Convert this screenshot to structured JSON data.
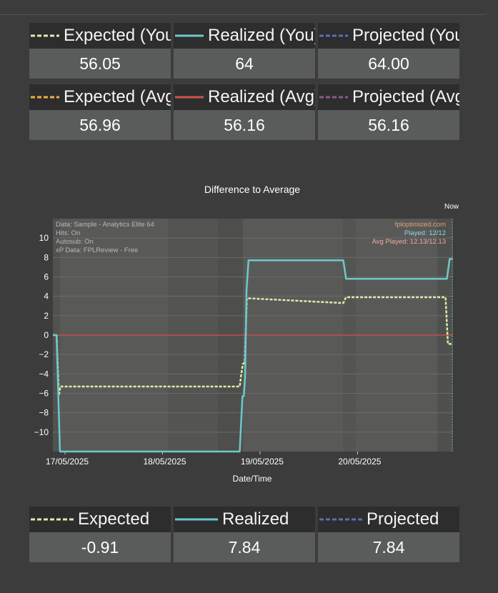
{
  "summary_top": [
    {
      "label": "Expected (You)",
      "value": "56.05",
      "color": "#d8f0a8",
      "dash": true
    },
    {
      "label": "Realized (You)",
      "value": "64",
      "color": "#6cc9cc",
      "dash": false
    },
    {
      "label": "Projected (You)",
      "value": "64.00",
      "color": "#5a6fb0",
      "dash": true
    },
    {
      "label": "Expected (Avg)",
      "value": "56.96",
      "color": "#f0b040",
      "dash": true
    },
    {
      "label": "Realized (Avg)",
      "value": "56.16",
      "color": "#d0534a",
      "dash": false
    },
    {
      "label": "Projected (Avg)",
      "value": "56.16",
      "color": "#8c5a8a",
      "dash": true
    }
  ],
  "summary_bottom": [
    {
      "label": "Expected",
      "value": "-0.91",
      "color": "#d8f0a8",
      "dash": true
    },
    {
      "label": "Realized",
      "value": "7.84",
      "color": "#6cc9cc",
      "dash": false
    },
    {
      "label": "Projected",
      "value": "7.84",
      "color": "#5a6fb0",
      "dash": true
    }
  ],
  "chart_data": {
    "type": "line",
    "title": "Difference to Average",
    "xlabel": "Date/Time",
    "ylabel": "",
    "now_label": "Now",
    "ylim": [
      -12,
      12
    ],
    "yticks": [
      10,
      8,
      6,
      4,
      2,
      0,
      -2,
      -4,
      -6,
      -8,
      -10
    ],
    "ytick_labels": [
      "10",
      "8",
      "6",
      "4",
      "2",
      "0",
      "−2",
      "−4",
      "−6",
      "−8",
      "−10"
    ],
    "xlim": [
      "2025-05-16T21:00",
      "2025-05-20T23:30"
    ],
    "xticks": [
      "17/05/2025",
      "18/05/2025",
      "19/05/2025",
      "20/05/2025"
    ],
    "info_left": [
      "Data: Sample - Analytics Elite 64",
      "Hits: On",
      "Autosub: On",
      "xP Data: FPLReview - Free"
    ],
    "info_right": [
      {
        "text": "fploptimized.com",
        "color": "#e0a070"
      },
      {
        "text": "Played: 12/12",
        "color": "#8ed8e0"
      },
      {
        "text": "Avg Played: 12.13/12.13",
        "color": "#f0a8a0"
      }
    ],
    "series": [
      {
        "key": "expected",
        "color": "#d8f0a8",
        "dash": true,
        "x": [
          "2025-05-16T21:00",
          "2025-05-16T21:55",
          "2025-05-16T22:30",
          "2025-05-16T22:50",
          "2025-05-18T19:00",
          "2025-05-18T19:20",
          "2025-05-18T19:45",
          "2025-05-18T20:15",
          "2025-05-18T20:45",
          "2025-05-19T20:30",
          "2025-05-19T21:10",
          "2025-05-20T21:40",
          "2025-05-20T22:15",
          "2025-05-20T23:30"
        ],
        "y": [
          0,
          0,
          -6.2,
          -5.3,
          -5.3,
          -4.2,
          -3.0,
          -2.8,
          3.8,
          3.3,
          3.9,
          3.9,
          -0.91,
          -0.91
        ]
      },
      {
        "key": "realized",
        "color": "#6cc9cc",
        "dash": false,
        "x": [
          "2025-05-16T21:00",
          "2025-05-16T21:55",
          "2025-05-16T22:45",
          "2025-05-18T19:00",
          "2025-05-18T19:40",
          "2025-05-18T20:00",
          "2025-05-18T20:20",
          "2025-05-18T20:40",
          "2025-05-18T21:10",
          "2025-05-19T20:30",
          "2025-05-19T21:10",
          "2025-05-20T22:00",
          "2025-05-20T22:40",
          "2025-05-20T23:30"
        ],
        "y": [
          0,
          0,
          -12,
          -12,
          -6.3,
          -6.3,
          -4.2,
          4.5,
          7.7,
          7.7,
          5.8,
          5.8,
          7.84,
          7.84
        ]
      },
      {
        "key": "average",
        "color": "#c0504a",
        "dash": false,
        "x": [
          "2025-05-16T21:00",
          "2025-05-20T23:30"
        ],
        "y": [
          0,
          0
        ]
      }
    ]
  }
}
